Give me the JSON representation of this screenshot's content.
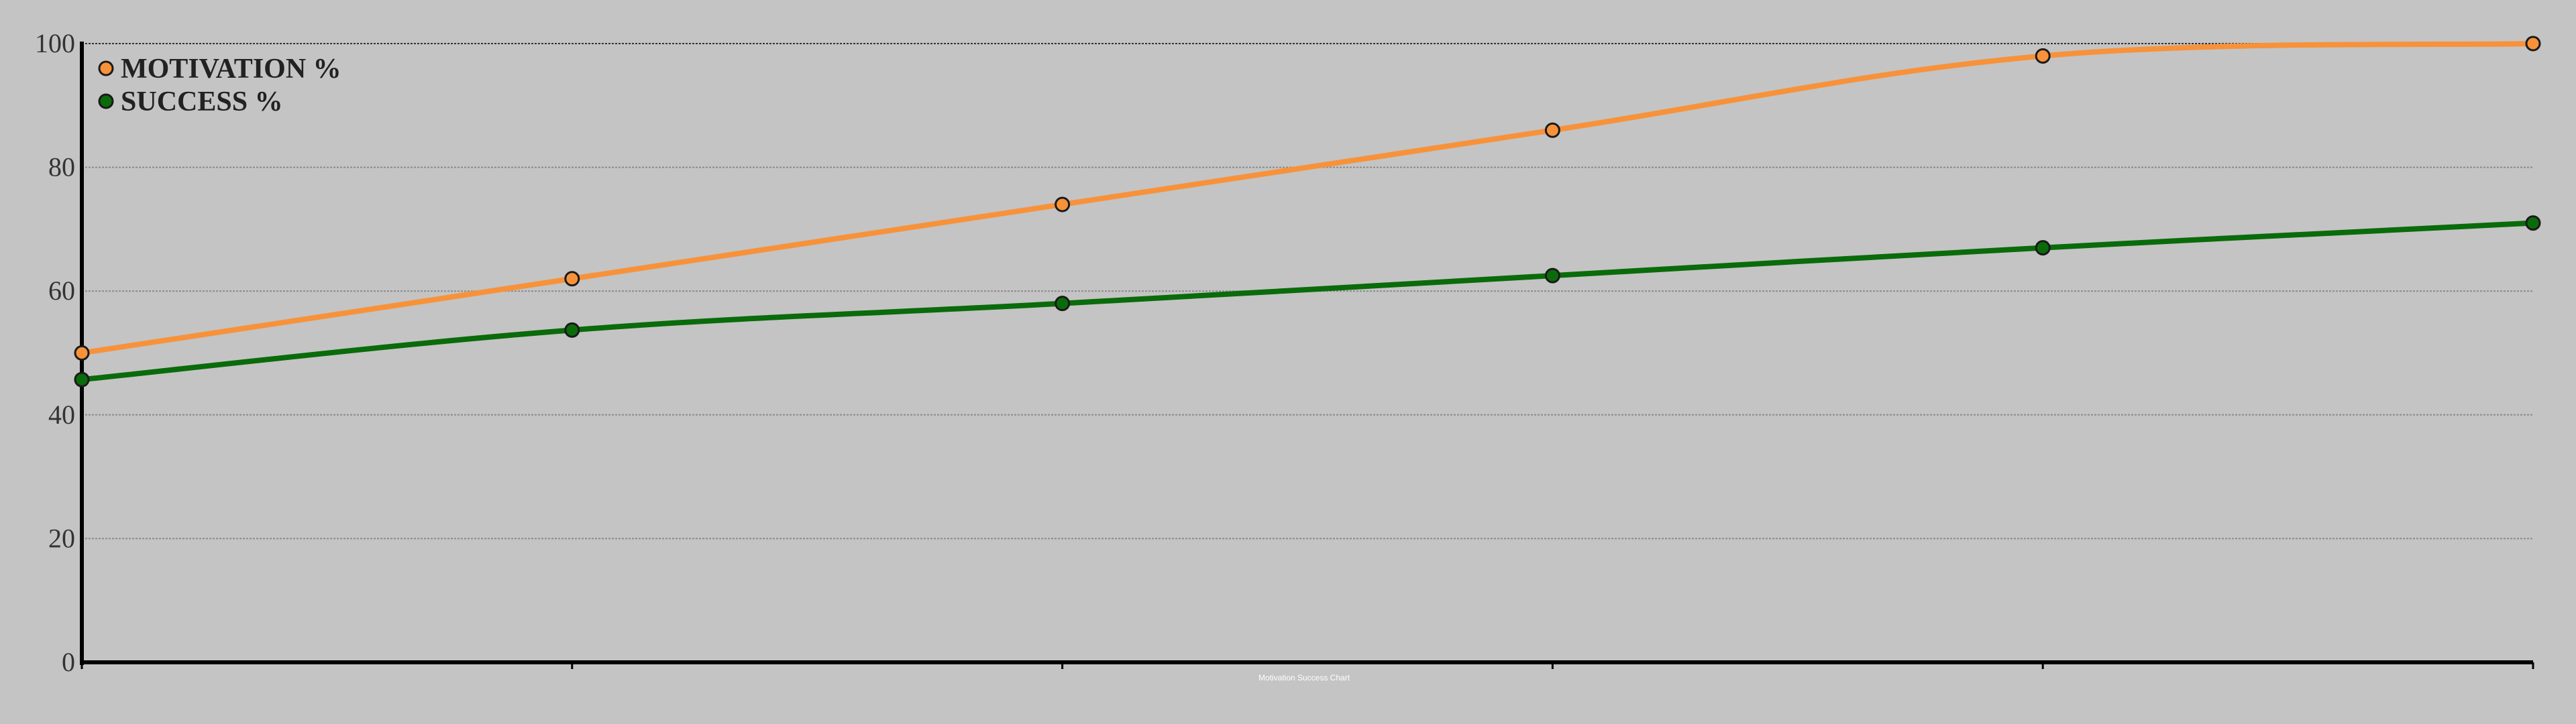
{
  "chart_data": {
    "type": "line",
    "title": "",
    "xlabel": "",
    "ylabel": "",
    "categories": [
      "",
      "",
      "",
      "",
      "",
      ""
    ],
    "ylim": [
      0,
      100
    ],
    "yticks": [
      0,
      20,
      40,
      60,
      80,
      100
    ],
    "grid": true,
    "legend_position": "top-left",
    "credit": "Motivation Success Chart",
    "series": [
      {
        "name": "MOTIVATION %",
        "color": "#f7923a",
        "values": [
          50,
          62,
          74,
          86,
          98,
          100
        ]
      },
      {
        "name": "SUCCESS %",
        "color": "#0a6b0a",
        "values": [
          45.7,
          53.7,
          58,
          62.5,
          67,
          71
        ]
      }
    ]
  }
}
